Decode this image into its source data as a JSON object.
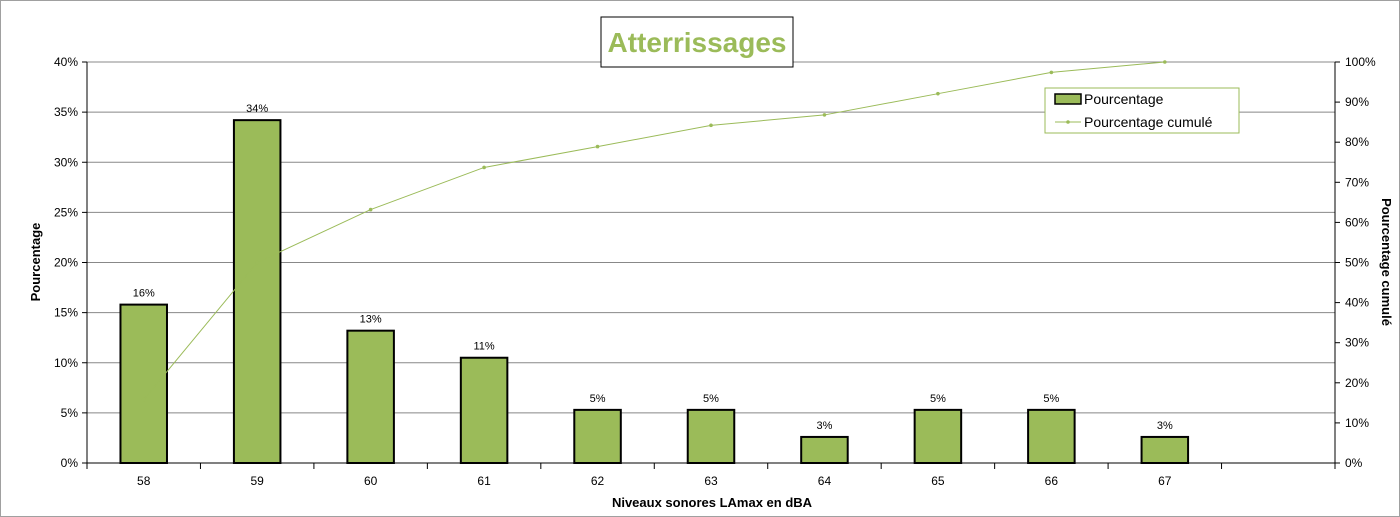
{
  "colors": {
    "bar_fill": "#9bbb59",
    "bar_stroke": "#000000",
    "line": "#9bbb59",
    "title_text": "#9bbb59",
    "grid": "#888888"
  },
  "chart_data": {
    "type": "bar",
    "title": "Atterrissages",
    "xlabel": "Niveaux sonores LAmax en dBA",
    "ylabel": "Pourcentage",
    "y2label": "Pourcentage cumulé",
    "categories": [
      "58",
      "59",
      "60",
      "61",
      "62",
      "63",
      "64",
      "65",
      "66",
      "67"
    ],
    "series": [
      {
        "name": "Pourcentage",
        "type": "bar",
        "axis": "left",
        "values": [
          15.8,
          34.2,
          13.2,
          10.5,
          5.3,
          5.3,
          2.6,
          5.3,
          5.3,
          2.6
        ],
        "labels": [
          "16%",
          "34%",
          "13%",
          "11%",
          "5%",
          "5%",
          "3%",
          "5%",
          "5%",
          "3%"
        ]
      },
      {
        "name": "Pourcentage cumulé",
        "type": "line",
        "axis": "right",
        "values": [
          15.8,
          50.0,
          63.2,
          73.7,
          78.9,
          84.2,
          86.8,
          92.1,
          97.4,
          100.0
        ]
      }
    ],
    "ylim": [
      0,
      40
    ],
    "y2lim": [
      0,
      100
    ],
    "yticks": [
      "0%",
      "5%",
      "10%",
      "15%",
      "20%",
      "25%",
      "30%",
      "35%",
      "40%"
    ],
    "y2ticks": [
      "0%",
      "10%",
      "20%",
      "30%",
      "40%",
      "50%",
      "60%",
      "70%",
      "80%",
      "90%",
      "100%"
    ],
    "grid": true,
    "legend_position": "top-right"
  }
}
